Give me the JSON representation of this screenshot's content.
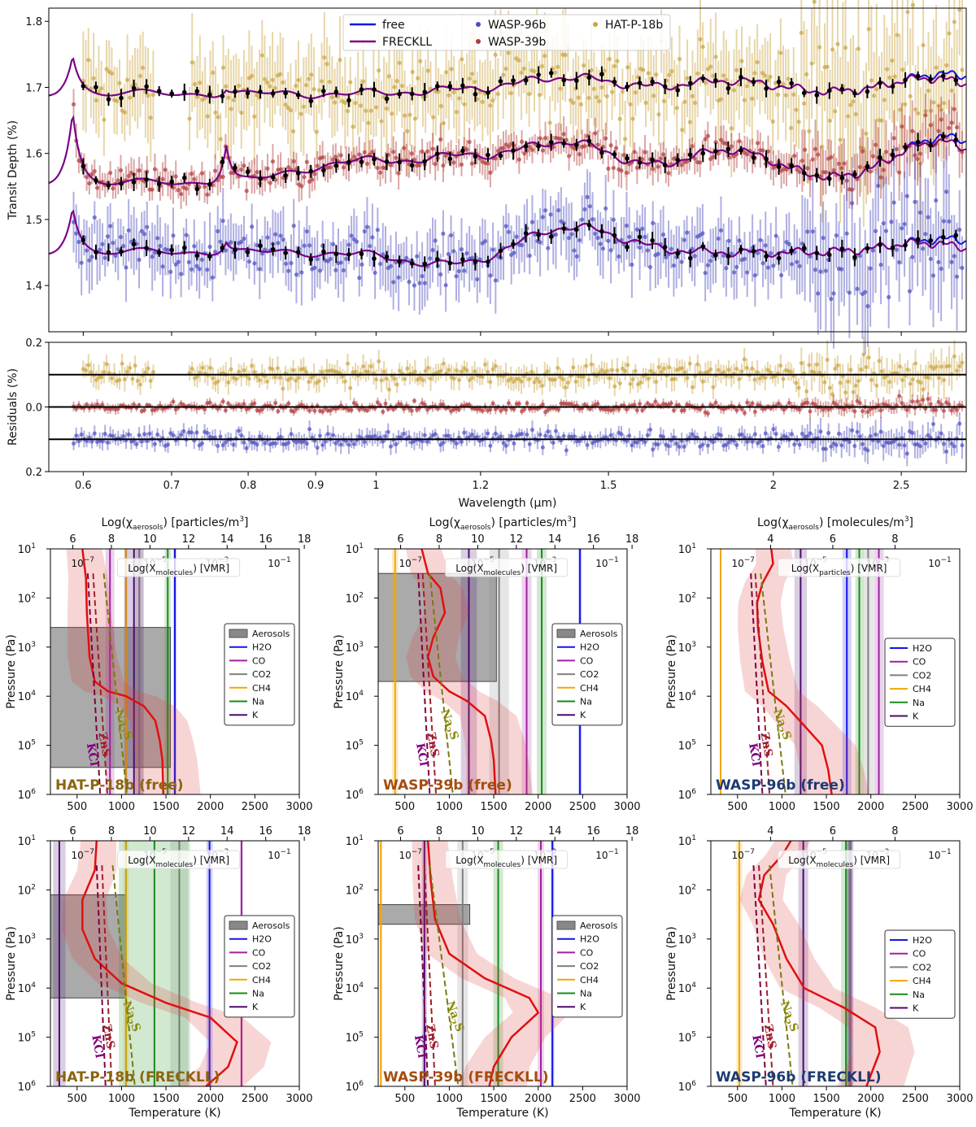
{
  "chart_data": [
    {
      "type": "line",
      "title": "",
      "xlabel": "Wavelength (μm)",
      "ylabel": "Transit Depth (%)",
      "x_scale": "log",
      "xlim": [
        0.565,
        2.8
      ],
      "ylim": [
        1.33,
        1.82
      ],
      "x_ticks": [
        "0.6",
        "0.7",
        "0.8",
        "0.9",
        "1",
        "1.2",
        "1.5",
        "2",
        "2.5"
      ],
      "y_ticks": [
        "1.4",
        "1.5",
        "1.6",
        "1.7",
        "1.8"
      ],
      "legend": {
        "location": "top-center",
        "entries": [
          "free",
          "FRECKLL",
          "WASP-96b",
          "WASP-39b",
          "HAT-P-18b"
        ]
      },
      "colors": {
        "free": "#1414e6",
        "freckll": "#800080",
        "wasp96": "#4d4dbf",
        "wasp39": "#b03a3a",
        "hatp18": "#c9a441",
        "binned": "#000000"
      },
      "series": [
        {
          "name": "HAT-P-18b",
          "baseline": 1.69,
          "features": [
            {
              "x": 0.589,
              "dy": 0.06
            },
            {
              "x": 0.77,
              "dy": 0.01
            },
            {
              "x": 1.15,
              "dy": 0.005
            },
            {
              "x": 1.4,
              "dy": 0.025
            },
            {
              "x": 1.85,
              "dy": 0.02
            },
            {
              "x": 2.7,
              "dy": 0.03
            }
          ]
        },
        {
          "name": "WASP-39b",
          "baseline": 1.555,
          "features": [
            {
              "x": 0.589,
              "dy": 0.11
            },
            {
              "x": 0.77,
              "dy": 0.06
            },
            {
              "x": 0.95,
              "dy": 0.03
            },
            {
              "x": 1.15,
              "dy": 0.035
            },
            {
              "x": 1.4,
              "dy": 0.06
            },
            {
              "x": 1.85,
              "dy": 0.05
            },
            {
              "x": 2.7,
              "dy": 0.07
            }
          ]
        },
        {
          "name": "WASP-96b",
          "baseline": 1.45,
          "features": [
            {
              "x": 0.589,
              "dy": 0.07
            },
            {
              "x": 0.77,
              "dy": 0.02
            },
            {
              "x": 1.15,
              "dy": -0.02
            },
            {
              "x": 1.4,
              "dy": 0.04
            },
            {
              "x": 1.85,
              "dy": 0.0
            },
            {
              "x": 2.7,
              "dy": 0.02
            }
          ]
        }
      ]
    },
    {
      "type": "scatter",
      "xlabel": "Wavelength (μm)",
      "ylabel": "Residuals (%)",
      "x_scale": "log",
      "xlim": [
        0.565,
        2.8
      ],
      "ylim": [
        -0.2,
        0.2
      ],
      "y_ticks": [
        "0.2",
        "0.0",
        "0.2"
      ],
      "x_ticks": [
        "0.6",
        "0.7",
        "0.8",
        "0.9",
        "1",
        "1.2",
        "1.5",
        "2",
        "2.5"
      ],
      "reference_lines": [
        0.1,
        0.0,
        -0.1
      ],
      "series": [
        {
          "name": "HAT-P-18b",
          "offset": 0.1
        },
        {
          "name": "WASP-39b",
          "offset": 0.0
        },
        {
          "name": "WASP-96b",
          "offset": -0.1
        }
      ]
    }
  ],
  "profile_panels": {
    "xlabel": "Temperature (K)",
    "ylabel": "Pressure (Pa)",
    "x_ticks": [
      "500",
      "1000",
      "1500",
      "2000",
      "2500",
      "3000"
    ],
    "y_ticks": [
      "10",
      "10",
      "10",
      "10",
      "10",
      "10"
    ],
    "y_exponents": [
      "1",
      "2",
      "3",
      "4",
      "5",
      "6"
    ],
    "vmr_label": "Log(X",
    "vmr_sub": "molecules",
    "vmr_tail": ") [VMR]",
    "vmr_sub_particles": "particles",
    "vmr_ticks": [
      {
        "base": "10",
        "exp": "−7"
      },
      {
        "base": "10",
        "exp": "−5"
      },
      {
        "base": "10",
        "exp": "−3"
      },
      {
        "base": "10",
        "exp": "−1"
      }
    ],
    "cloud_labels": [
      "KCl",
      "ZnS",
      "Na",
      "2",
      "S"
    ],
    "panels": [
      {
        "title": "HAT-P-18b (free)",
        "title_color": "#8a6510",
        "top_label_pre": "Log(χ",
        "top_sub": "aerosols",
        "top_label_post": ") [particles/m",
        "top_sup": "3",
        "top_close": "]",
        "top_ticks": [
          "6",
          "8",
          "10",
          "12",
          "14",
          "16",
          "18"
        ],
        "legend": [
          "Aerosols",
          "H2O",
          "CO",
          "CO2",
          "CH4",
          "Na",
          "K"
        ],
        "aerosol_p": [
          2.6,
          5.45
        ],
        "tp": [
          [
            560,
            1.0
          ],
          [
            600,
            1.6
          ],
          [
            610,
            2.3
          ],
          [
            640,
            3.2
          ],
          [
            700,
            3.7
          ],
          [
            850,
            3.9
          ],
          [
            1050,
            4.0
          ],
          [
            1250,
            4.2
          ],
          [
            1380,
            4.5
          ],
          [
            1430,
            4.9
          ],
          [
            1460,
            5.3
          ],
          [
            1470,
            6.0
          ]
        ],
        "lines": [
          {
            "sp": "H2O",
            "t": 1600,
            "w": 40
          },
          {
            "sp": "CO",
            "t": 870,
            "w": 100
          },
          {
            "sp": "CO2",
            "t": 1200,
            "w": 90
          },
          {
            "sp": "CH4",
            "t": 1050,
            "w": 40
          },
          {
            "sp": "Na",
            "t": 1520,
            "w": 70
          },
          {
            "sp": "K",
            "t": 1140,
            "w": 220
          }
        ],
        "kcl": [
          [
            620,
            1.5
          ],
          [
            760,
            6.0
          ]
        ],
        "zns": [
          [
            680,
            1.5
          ],
          [
            840,
            6.0
          ]
        ],
        "na2s": [
          [
            800,
            1.5
          ],
          [
            1060,
            6.0
          ]
        ]
      },
      {
        "title": "WASP-39b (free)",
        "title_color": "#a34d10",
        "top_label_pre": "Log(χ",
        "top_sub": "aerosols",
        "top_label_post": ") [particles/m",
        "top_sup": "3",
        "top_close": "]",
        "top_ticks": [
          "6",
          "8",
          "10",
          "12",
          "14",
          "16",
          "18"
        ],
        "legend": [
          "Aerosols",
          "H2O",
          "CO",
          "CO2",
          "CH4",
          "Na",
          "K"
        ],
        "aerosol_p": [
          1.5,
          3.7
        ],
        "tp": [
          [
            690,
            1.0
          ],
          [
            760,
            1.5
          ],
          [
            900,
            1.8
          ],
          [
            950,
            2.3
          ],
          [
            820,
            2.8
          ],
          [
            760,
            3.2
          ],
          [
            820,
            3.6
          ],
          [
            1000,
            3.9
          ],
          [
            1200,
            4.1
          ],
          [
            1400,
            4.4
          ],
          [
            1470,
            4.9
          ],
          [
            1500,
            5.3
          ],
          [
            1520,
            6.0
          ]
        ],
        "lines": [
          {
            "sp": "H2O",
            "t": 2470,
            "w": 40
          },
          {
            "sp": "CO",
            "t": 1870,
            "w": 110
          },
          {
            "sp": "CO2",
            "t": 1560,
            "w": 220
          },
          {
            "sp": "CH4",
            "t": 390,
            "w": 70
          },
          {
            "sp": "Na",
            "t": 2040,
            "w": 110
          },
          {
            "sp": "K",
            "t": 1220,
            "w": 180
          }
        ],
        "kcl": [
          [
            650,
            1.5
          ],
          [
            780,
            6.0
          ]
        ],
        "zns": [
          [
            700,
            1.5
          ],
          [
            850,
            6.0
          ]
        ],
        "na2s": [
          [
            780,
            1.5
          ],
          [
            1040,
            6.0
          ]
        ]
      },
      {
        "title": "WASP-96b (free)",
        "title_color": "#1f3a70",
        "top_label_pre": "Log(χ",
        "top_sub": "aerosols",
        "top_label_post": ") [molecules/m",
        "top_sup": "3",
        "top_close": "]",
        "top_ticks": [
          "4",
          "6",
          "8"
        ],
        "legend": [
          "H2O",
          "CO",
          "CO2",
          "CH4",
          "Na",
          "K"
        ],
        "aerosol_p": null,
        "tp": [
          [
            880,
            1.0
          ],
          [
            900,
            1.3
          ],
          [
            780,
            1.7
          ],
          [
            720,
            2.1
          ],
          [
            730,
            2.6
          ],
          [
            780,
            3.3
          ],
          [
            850,
            3.9
          ],
          [
            1050,
            4.2
          ],
          [
            1250,
            4.6
          ],
          [
            1450,
            5.0
          ],
          [
            1520,
            5.5
          ],
          [
            1560,
            6.0
          ]
        ],
        "lines": [
          {
            "sp": "H2O",
            "t": 1730,
            "w": 100
          },
          {
            "sp": "CO",
            "t": 2090,
            "w": 110
          },
          {
            "sp": "CO2",
            "t": 1970,
            "w": 120
          },
          {
            "sp": "CH4",
            "t": 310,
            "w": 20
          },
          {
            "sp": "Na",
            "t": 1870,
            "w": 90
          },
          {
            "sp": "K",
            "t": 1210,
            "w": 140
          }
        ],
        "kcl": [
          [
            650,
            1.5
          ],
          [
            780,
            6.0
          ]
        ],
        "zns": [
          [
            700,
            1.5
          ],
          [
            860,
            6.0
          ]
        ],
        "na2s": [
          [
            760,
            1.5
          ],
          [
            1040,
            6.0
          ]
        ]
      },
      {
        "title": "HAT-P-18b (FRECKLL)",
        "title_color": "#8a6510",
        "top_label_pre": "",
        "top_sub": "",
        "top_label_post": "",
        "top_sup": "",
        "top_close": "",
        "top_ticks": [
          "6",
          "8",
          "10",
          "12",
          "14",
          "16",
          "18"
        ],
        "legend": [
          "Aerosols",
          "H2O",
          "CO",
          "CO2",
          "CH4",
          "Na",
          "K"
        ],
        "aerosol_p": [
          2.1,
          4.2
        ],
        "tp": [
          [
            720,
            1.0
          ],
          [
            700,
            1.6
          ],
          [
            560,
            2.2
          ],
          [
            560,
            2.8
          ],
          [
            700,
            3.4
          ],
          [
            1000,
            3.9
          ],
          [
            1500,
            4.3
          ],
          [
            2000,
            4.6
          ],
          [
            2300,
            5.1
          ],
          [
            2200,
            5.6
          ],
          [
            1950,
            6.0
          ]
        ],
        "lines": [
          {
            "sp": "H2O",
            "t": 1990,
            "w": 70
          },
          {
            "sp": "CO",
            "t": 2350,
            "w": 30
          },
          {
            "sp": "CO2",
            "t": 1650,
            "w": 200
          },
          {
            "sp": "CH4",
            "t": 1050,
            "w": 60
          },
          {
            "sp": "Na",
            "t": 1370,
            "w": 800
          },
          {
            "sp": "K",
            "t": 300,
            "w": 140
          }
        ],
        "kcl": [
          [
            720,
            1.5
          ],
          [
            820,
            6.0
          ]
        ],
        "zns": [
          [
            780,
            1.5
          ],
          [
            890,
            6.0
          ]
        ],
        "na2s": [
          [
            900,
            1.5
          ],
          [
            1150,
            6.0
          ]
        ]
      },
      {
        "title": "WASP-39b (FRECKLL)",
        "title_color": "#a34d10",
        "top_label_pre": "",
        "top_sub": "",
        "top_label_post": "",
        "top_sup": "",
        "top_close": "",
        "top_ticks": [
          "6",
          "8",
          "10",
          "12",
          "14",
          "16",
          "18"
        ],
        "legend": [
          "Aerosols",
          "H2O",
          "CO",
          "CO2",
          "CH4",
          "Na",
          "K"
        ],
        "aerosol_p": [
          2.3,
          2.7
        ],
        "tp": [
          [
            760,
            1.0
          ],
          [
            790,
            1.8
          ],
          [
            840,
            2.6
          ],
          [
            1000,
            3.3
          ],
          [
            1400,
            3.8
          ],
          [
            1900,
            4.2
          ],
          [
            2000,
            4.5
          ],
          [
            1700,
            5.0
          ],
          [
            1500,
            5.6
          ],
          [
            1450,
            6.0
          ]
        ],
        "lines": [
          {
            "sp": "H2O",
            "t": 2160,
            "w": 40
          },
          {
            "sp": "CO",
            "t": 2030,
            "w": 70
          },
          {
            "sp": "CO2",
            "t": 1150,
            "w": 120
          },
          {
            "sp": "CH4",
            "t": 230,
            "w": 30
          },
          {
            "sp": "Na",
            "t": 1550,
            "w": 110
          },
          {
            "sp": "K",
            "t": 720,
            "w": 60
          }
        ],
        "kcl": [
          [
            650,
            1.5
          ],
          [
            760,
            6.0
          ]
        ],
        "zns": [
          [
            720,
            1.5
          ],
          [
            840,
            6.0
          ]
        ],
        "na2s": [
          [
            780,
            1.5
          ],
          [
            1100,
            6.0
          ]
        ]
      },
      {
        "title": "WASP-96b (FRECKLL)",
        "title_color": "#1f3a70",
        "top_label_pre": "",
        "top_sub": "",
        "top_label_post": "",
        "top_sup": "",
        "top_close": "",
        "top_ticks": [
          "4",
          "6",
          "8"
        ],
        "legend": [
          "H2O",
          "CO",
          "CO2",
          "CH4",
          "Na",
          "K"
        ],
        "aerosol_p": null,
        "tp": [
          [
            1100,
            1.0
          ],
          [
            1000,
            1.3
          ],
          [
            800,
            1.7
          ],
          [
            740,
            2.2
          ],
          [
            900,
            2.7
          ],
          [
            1050,
            3.4
          ],
          [
            1250,
            4.0
          ],
          [
            1700,
            4.4
          ],
          [
            2050,
            4.8
          ],
          [
            2100,
            5.3
          ],
          [
            1950,
            6.0
          ]
        ],
        "lines": [
          {
            "sp": "H2O",
            "t": 1760,
            "w": 70
          },
          {
            "sp": "CO",
            "t": 1770,
            "w": 60
          },
          {
            "sp": "CO2",
            "t": 1760,
            "w": 90
          },
          {
            "sp": "CH4",
            "t": 520,
            "w": 70
          },
          {
            "sp": "Na",
            "t": 1720,
            "w": 110
          },
          {
            "sp": "K",
            "t": 1240,
            "w": 110
          }
        ],
        "kcl": [
          [
            680,
            1.5
          ],
          [
            820,
            6.0
          ]
        ],
        "zns": [
          [
            740,
            1.5
          ],
          [
            900,
            6.0
          ]
        ],
        "na2s": [
          [
            860,
            1.5
          ],
          [
            1120,
            6.0
          ]
        ]
      }
    ],
    "species_colors": {
      "H2O": "#1414e6",
      "CO": "#a020a0",
      "CO2": "#808080",
      "CH4": "#f5a500",
      "Na": "#1a8a1a",
      "K": "#4b0a6e",
      "Aerosols": "#808080"
    }
  }
}
